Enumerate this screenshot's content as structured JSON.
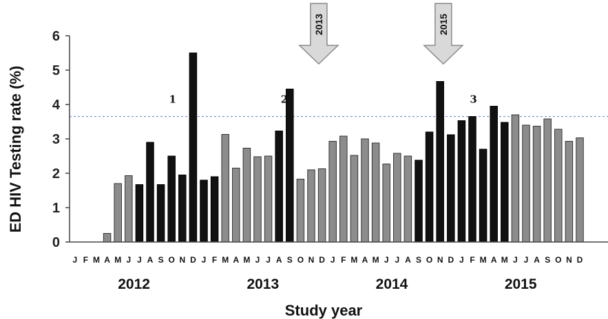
{
  "chart_data": {
    "type": "bar",
    "title": "",
    "xlabel": "Study year",
    "ylabel": "ED HIV Testing rate (%)",
    "ylim": [
      0,
      6
    ],
    "yticks": [
      "0",
      "1",
      "2",
      "3",
      "4",
      "5",
      "6"
    ],
    "grid": false,
    "reference_line": 3.65,
    "years": [
      {
        "label": "2012",
        "start": 0,
        "end": 11
      },
      {
        "label": "2013",
        "start": 12,
        "end": 23
      },
      {
        "label": "2014",
        "start": 24,
        "end": 35
      },
      {
        "label": "2015",
        "start": 36,
        "end": 47
      }
    ],
    "months": [
      "J",
      "F",
      "M",
      "A",
      "M",
      "J",
      "J",
      "A",
      "S",
      "O",
      "N",
      "D",
      "J",
      "F",
      "M",
      "A",
      "M",
      "J",
      "J",
      "A",
      "S",
      "O",
      "N",
      "D",
      "J",
      "F",
      "M",
      "A",
      "M",
      "J",
      "J",
      "A",
      "S",
      "O",
      "N",
      "D",
      "J",
      "F",
      "M",
      "A",
      "M",
      "J",
      "J",
      "A",
      "S",
      "O",
      "N",
      "D"
    ],
    "values": [
      0,
      0,
      0,
      0.25,
      1.7,
      1.93,
      1.67,
      2.9,
      1.67,
      2.5,
      1.95,
      5.5,
      1.8,
      1.9,
      3.13,
      2.15,
      2.73,
      2.48,
      2.5,
      3.23,
      4.45,
      1.83,
      2.1,
      2.13,
      2.93,
      3.08,
      2.52,
      3.0,
      2.88,
      2.27,
      2.58,
      2.5,
      2.38,
      3.2,
      4.67,
      3.12,
      3.53,
      3.65,
      2.7,
      3.95,
      3.48,
      3.7,
      3.4,
      3.37,
      3.58,
      3.28,
      2.93,
      3.03
    ],
    "phase": [
      "gray",
      "gray",
      "gray",
      "gray",
      "gray",
      "gray",
      "black",
      "black",
      "black",
      "black",
      "black",
      "black",
      "black",
      "black",
      "gray",
      "gray",
      "gray",
      "gray",
      "gray",
      "black",
      "black",
      "gray",
      "gray",
      "gray",
      "gray",
      "gray",
      "gray",
      "gray",
      "gray",
      "gray",
      "gray",
      "gray",
      "black",
      "black",
      "black",
      "black",
      "black",
      "black",
      "black",
      "black",
      "black",
      "gray",
      "gray",
      "gray",
      "gray",
      "gray",
      "gray",
      "gray"
    ],
    "colors": {
      "gray": "#8c8c8c",
      "black": "#111111",
      "reference_line": "#7b93c9",
      "arrow_fill": "#d9d9d9",
      "arrow_stroke": "#8a8a8a"
    },
    "annotations": [
      {
        "text": "1",
        "x_index": 9.1,
        "y": 4.05
      },
      {
        "text": "2",
        "x_index": 19.5,
        "y": 4.05
      },
      {
        "text": "3",
        "x_index": 37.1,
        "y": 4.05
      }
    ],
    "arrows": [
      {
        "text": "2013",
        "x_index": 22.7
      },
      {
        "text": "2015",
        "x_index": 34.3
      }
    ]
  }
}
